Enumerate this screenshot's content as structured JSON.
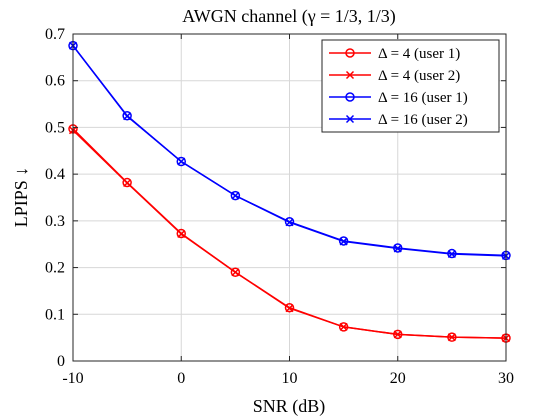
{
  "chart_data": {
    "type": "line",
    "title": "AWGN channel (γ = 1/3, 1/3)",
    "xlabel": "SNR (dB)",
    "ylabel": "LPIPS ↓",
    "x": [
      -10,
      -5,
      0,
      5,
      10,
      15,
      20,
      25,
      30
    ],
    "xlim": [
      -10,
      30
    ],
    "ylim": [
      0,
      0.7
    ],
    "xticks": [
      "-10",
      "0",
      "10",
      "20",
      "30"
    ],
    "yticks": [
      "0",
      "0.1",
      "0.2",
      "0.3",
      "0.4",
      "0.5",
      "0.6",
      "0.7"
    ],
    "grid": true,
    "legend_position": "top-right",
    "series": [
      {
        "name": "Δ = 4 (user 1)",
        "color": "#ff0000",
        "marker": "circle",
        "values": [
          0.497,
          0.382,
          0.273,
          0.19,
          0.114,
          0.073,
          0.057,
          0.051,
          0.049
        ]
      },
      {
        "name": "Δ = 4 (user 2)",
        "color": "#ff0000",
        "marker": "x",
        "values": [
          0.494,
          0.381,
          0.272,
          0.19,
          0.113,
          0.073,
          0.057,
          0.051,
          0.049
        ]
      },
      {
        "name": "Δ = 16 (user 1)",
        "color": "#0000ff",
        "marker": "circle",
        "values": [
          0.675,
          0.525,
          0.427,
          0.354,
          0.298,
          0.257,
          0.242,
          0.23,
          0.226
        ]
      },
      {
        "name": "Δ = 16 (user 2)",
        "color": "#0000ff",
        "marker": "x",
        "values": [
          0.675,
          0.524,
          0.427,
          0.354,
          0.297,
          0.256,
          0.241,
          0.229,
          0.225
        ]
      }
    ]
  }
}
